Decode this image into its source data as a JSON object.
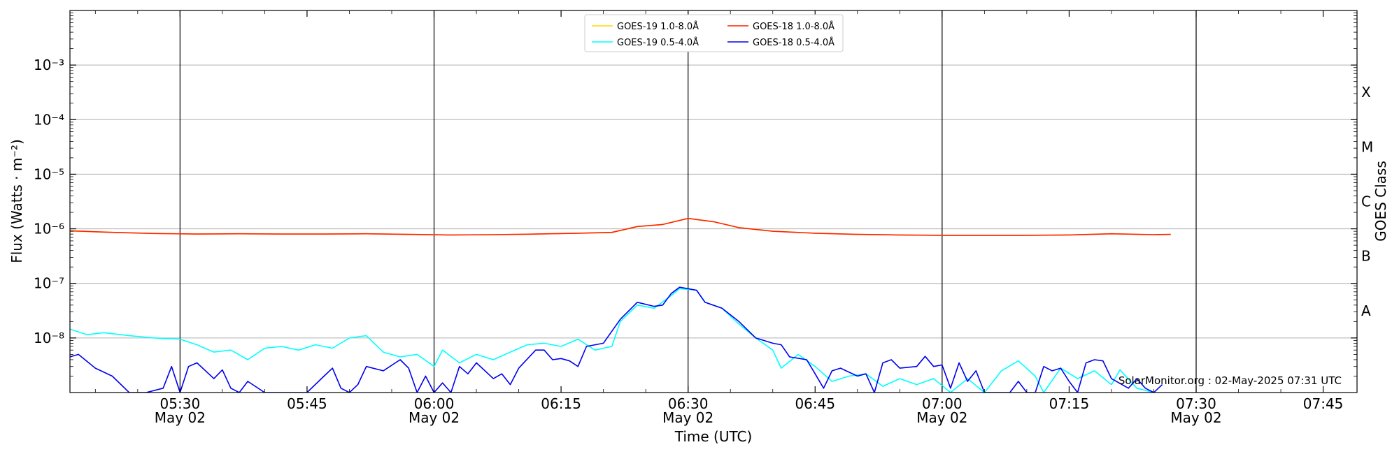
{
  "chart_data": {
    "type": "line",
    "xlabel": "Time (UTC)",
    "ylabel": "Flux (Watts · m⁻²)",
    "y2label": "GOES Class",
    "yscale": "log",
    "ylim": [
      1e-09,
      0.01
    ],
    "xlim": [
      "05:17",
      "07:49"
    ],
    "grid": "horizontal",
    "legend_position": "top-center",
    "credit": "SolarMonitor.org : 02-May-2025 07:31 UTC",
    "x_ticks": [
      {
        "time": "05:30",
        "label": "05:30",
        "sublabel": "May 02"
      },
      {
        "time": "05:45",
        "label": "05:45",
        "sublabel": ""
      },
      {
        "time": "06:00",
        "label": "06:00",
        "sublabel": "May 02"
      },
      {
        "time": "06:15",
        "label": "06:15",
        "sublabel": ""
      },
      {
        "time": "06:30",
        "label": "06:30",
        "sublabel": "May 02"
      },
      {
        "time": "06:45",
        "label": "06:45",
        "sublabel": ""
      },
      {
        "time": "07:00",
        "label": "07:00",
        "sublabel": "May 02"
      },
      {
        "time": "07:15",
        "label": "07:15",
        "sublabel": ""
      },
      {
        "time": "07:30",
        "label": "07:30",
        "sublabel": "May 02"
      },
      {
        "time": "07:45",
        "label": "07:45",
        "sublabel": ""
      }
    ],
    "vlines": [
      "05:30",
      "06:00",
      "06:30",
      "07:00",
      "07:30"
    ],
    "y_ticks": [
      {
        "value": 0.001,
        "label": "10⁻³"
      },
      {
        "value": 0.0001,
        "label": "10⁻⁴"
      },
      {
        "value": 1e-05,
        "label": "10⁻⁵"
      },
      {
        "value": 1e-06,
        "label": "10⁻⁶"
      },
      {
        "value": 1e-07,
        "label": "10⁻⁷"
      },
      {
        "value": 1e-08,
        "label": "10⁻⁸"
      }
    ],
    "goes_classes": [
      {
        "label": "A",
        "value": 3.16e-08
      },
      {
        "label": "B",
        "value": 3.16e-07
      },
      {
        "label": "C",
        "value": 3.16e-06
      },
      {
        "label": "M",
        "value": 3.16e-05
      },
      {
        "label": "X",
        "value": 0.000316
      }
    ],
    "legend": [
      {
        "label": "GOES-19 1.0-8.0Å",
        "color": "#ffd700"
      },
      {
        "label": "GOES-19 0.5-4.0Å",
        "color": "#00ffff"
      },
      {
        "label": "GOES-18 1.0-8.0Å",
        "color": "#ff2200"
      },
      {
        "label": "GOES-18 0.5-4.0Å",
        "color": "#0000ee"
      }
    ],
    "series": [
      {
        "name": "GOES-19 1.0-8.0Å",
        "color": "#ffd700",
        "points": [
          [
            "05:17",
            9.1e-07
          ],
          [
            "05:22",
            8.6e-07
          ],
          [
            "05:27",
            8.2e-07
          ],
          [
            "05:32",
            8e-07
          ],
          [
            "05:37",
            8.1e-07
          ],
          [
            "05:42",
            8e-07
          ],
          [
            "05:47",
            8e-07
          ],
          [
            "05:52",
            8.1e-07
          ],
          [
            "05:57",
            7.9e-07
          ],
          [
            "06:02",
            7.7e-07
          ],
          [
            "06:07",
            7.8e-07
          ],
          [
            "06:12",
            8e-07
          ],
          [
            "06:17",
            8.3e-07
          ],
          [
            "06:21",
            8.5e-07
          ],
          [
            "06:24",
            1.1e-06
          ],
          [
            "06:27",
            1.2e-06
          ],
          [
            "06:30",
            1.55e-06
          ],
          [
            "06:33",
            1.35e-06
          ],
          [
            "06:36",
            1.05e-06
          ],
          [
            "06:40",
            9e-07
          ],
          [
            "06:45",
            8.3e-07
          ],
          [
            "06:50",
            7.9e-07
          ],
          [
            "06:55",
            7.7e-07
          ],
          [
            "07:00",
            7.6e-07
          ],
          [
            "07:05",
            7.6e-07
          ],
          [
            "07:10",
            7.6e-07
          ],
          [
            "07:15",
            7.7e-07
          ],
          [
            "07:20",
            8.1e-07
          ],
          [
            "07:25",
            7.8e-07
          ],
          [
            "07:27",
            7.9e-07
          ]
        ]
      },
      {
        "name": "GOES-19 0.5-4.0Å",
        "color": "#00ffff",
        "points": [
          [
            "05:17",
            1.45e-08
          ],
          [
            "05:19",
            1.15e-08
          ],
          [
            "05:21",
            1.25e-08
          ],
          [
            "05:24",
            1.1e-08
          ],
          [
            "05:27",
            1e-08
          ],
          [
            "05:30",
            9.5e-09
          ],
          [
            "05:32",
            7.5e-09
          ],
          [
            "05:34",
            5.5e-09
          ],
          [
            "05:36",
            6e-09
          ],
          [
            "05:38",
            4e-09
          ],
          [
            "05:40",
            6.5e-09
          ],
          [
            "05:42",
            7e-09
          ],
          [
            "05:44",
            6e-09
          ],
          [
            "05:46",
            7.5e-09
          ],
          [
            "05:48",
            6.5e-09
          ],
          [
            "05:50",
            1e-08
          ],
          [
            "05:52",
            1.1e-08
          ],
          [
            "05:54",
            5.5e-09
          ],
          [
            "05:56",
            4.5e-09
          ],
          [
            "05:58",
            5e-09
          ],
          [
            "06:00",
            3e-09
          ],
          [
            "06:01",
            6e-09
          ],
          [
            "06:03",
            3.5e-09
          ],
          [
            "06:05",
            5e-09
          ],
          [
            "06:07",
            4e-09
          ],
          [
            "06:09",
            5.5e-09
          ],
          [
            "06:11",
            7.5e-09
          ],
          [
            "06:13",
            8e-09
          ],
          [
            "06:15",
            7e-09
          ],
          [
            "06:17",
            9.5e-09
          ],
          [
            "06:19",
            6e-09
          ],
          [
            "06:21",
            7e-09
          ],
          [
            "06:22",
            2e-08
          ],
          [
            "06:24",
            4e-08
          ],
          [
            "06:26",
            3.5e-08
          ],
          [
            "06:28",
            6e-08
          ],
          [
            "06:29",
            8e-08
          ],
          [
            "06:31",
            7.5e-08
          ],
          [
            "06:32",
            4.5e-08
          ],
          [
            "06:34",
            3.5e-08
          ],
          [
            "06:36",
            1.8e-08
          ],
          [
            "06:38",
            1e-08
          ],
          [
            "06:40",
            6e-09
          ],
          [
            "06:41",
            2.8e-09
          ],
          [
            "06:43",
            5e-09
          ],
          [
            "06:45",
            3e-09
          ],
          [
            "06:47",
            1.6e-09
          ],
          [
            "06:49",
            2e-09
          ],
          [
            "06:51",
            2.2e-09
          ],
          [
            "06:53",
            1.3e-09
          ],
          [
            "06:55",
            1.8e-09
          ],
          [
            "06:57",
            1.4e-09
          ],
          [
            "06:59",
            1.8e-09
          ],
          [
            "07:01",
            1e-09
          ],
          [
            "07:03",
            1.8e-09
          ],
          [
            "07:05",
            1e-09
          ],
          [
            "07:07",
            2.5e-09
          ],
          [
            "07:09",
            3.8e-09
          ],
          [
            "07:11",
            2e-09
          ],
          [
            "07:12",
            1e-09
          ],
          [
            "07:14",
            2.8e-09
          ],
          [
            "07:16",
            1.8e-09
          ],
          [
            "07:18",
            2.5e-09
          ],
          [
            "07:20",
            1.4e-09
          ],
          [
            "07:21",
            2.6e-09
          ],
          [
            "07:23",
            1.2e-09
          ],
          [
            "07:25",
            1e-09
          ]
        ]
      },
      {
        "name": "GOES-18 1.0-8.0Å",
        "color": "#ff2200",
        "points": [
          [
            "05:17",
            9.2e-07
          ],
          [
            "05:22",
            8.6e-07
          ],
          [
            "05:27",
            8.2e-07
          ],
          [
            "05:32",
            8e-07
          ],
          [
            "05:37",
            8.1e-07
          ],
          [
            "05:42",
            8e-07
          ],
          [
            "05:47",
            8e-07
          ],
          [
            "05:52",
            8.1e-07
          ],
          [
            "05:57",
            7.9e-07
          ],
          [
            "06:02",
            7.7e-07
          ],
          [
            "06:07",
            7.8e-07
          ],
          [
            "06:12",
            8e-07
          ],
          [
            "06:17",
            8.3e-07
          ],
          [
            "06:21",
            8.6e-07
          ],
          [
            "06:24",
            1.1e-06
          ],
          [
            "06:27",
            1.2e-06
          ],
          [
            "06:30",
            1.55e-06
          ],
          [
            "06:33",
            1.35e-06
          ],
          [
            "06:36",
            1.05e-06
          ],
          [
            "06:40",
            9e-07
          ],
          [
            "06:45",
            8.3e-07
          ],
          [
            "06:50",
            7.9e-07
          ],
          [
            "06:55",
            7.7e-07
          ],
          [
            "07:00",
            7.6e-07
          ],
          [
            "07:05",
            7.6e-07
          ],
          [
            "07:10",
            7.6e-07
          ],
          [
            "07:15",
            7.7e-07
          ],
          [
            "07:20",
            8.1e-07
          ],
          [
            "07:25",
            7.8e-07
          ],
          [
            "07:27",
            7.9e-07
          ]
        ]
      },
      {
        "name": "GOES-18 0.5-4.0Å",
        "color": "#0000ee",
        "points": [
          [
            "05:17",
            4.5e-09
          ],
          [
            "05:18",
            5e-09
          ],
          [
            "05:20",
            2.8e-09
          ],
          [
            "05:22",
            2e-09
          ],
          [
            "05:24",
            1e-09
          ],
          [
            "05:26",
            1e-09
          ],
          [
            "05:28",
            1.2e-09
          ],
          [
            "05:29",
            3e-09
          ],
          [
            "05:30",
            1e-09
          ],
          [
            "05:31",
            3e-09
          ],
          [
            "05:32",
            3.5e-09
          ],
          [
            "05:34",
            1.8e-09
          ],
          [
            "05:35",
            2.6e-09
          ],
          [
            "05:36",
            1.2e-09
          ],
          [
            "05:37",
            1e-09
          ],
          [
            "05:38",
            1.6e-09
          ],
          [
            "05:40",
            1e-09
          ],
          [
            "05:45",
            1e-09
          ],
          [
            "05:47",
            2e-09
          ],
          [
            "05:48",
            2.8e-09
          ],
          [
            "05:49",
            1.2e-09
          ],
          [
            "05:50",
            1e-09
          ],
          [
            "05:51",
            1.4e-09
          ],
          [
            "05:52",
            3e-09
          ],
          [
            "05:54",
            2.5e-09
          ],
          [
            "05:56",
            4e-09
          ],
          [
            "05:57",
            2.8e-09
          ],
          [
            "05:58",
            1e-09
          ],
          [
            "05:59",
            2e-09
          ],
          [
            "06:00",
            1e-09
          ],
          [
            "06:01",
            1.5e-09
          ],
          [
            "06:02",
            1e-09
          ],
          [
            "06:03",
            3e-09
          ],
          [
            "06:04",
            2.2e-09
          ],
          [
            "06:05",
            3.5e-09
          ],
          [
            "06:07",
            1.8e-09
          ],
          [
            "06:08",
            2.2e-09
          ],
          [
            "06:09",
            1.4e-09
          ],
          [
            "06:10",
            2.8e-09
          ],
          [
            "06:12",
            6e-09
          ],
          [
            "06:13",
            6e-09
          ],
          [
            "06:14",
            4e-09
          ],
          [
            "06:15",
            4.2e-09
          ],
          [
            "06:16",
            3.8e-09
          ],
          [
            "06:17",
            3e-09
          ],
          [
            "06:18",
            7e-09
          ],
          [
            "06:20",
            8e-09
          ],
          [
            "06:22",
            2.2e-08
          ],
          [
            "06:24",
            4.5e-08
          ],
          [
            "06:26",
            3.8e-08
          ],
          [
            "06:27",
            4e-08
          ],
          [
            "06:28",
            6.5e-08
          ],
          [
            "06:29",
            8.5e-08
          ],
          [
            "06:31",
            7.5e-08
          ],
          [
            "06:32",
            4.5e-08
          ],
          [
            "06:34",
            3.5e-08
          ],
          [
            "06:36",
            2e-08
          ],
          [
            "06:38",
            1e-08
          ],
          [
            "06:40",
            8e-09
          ],
          [
            "06:41",
            7.5e-09
          ],
          [
            "06:42",
            4.5e-09
          ],
          [
            "06:44",
            4e-09
          ],
          [
            "06:45",
            2.2e-09
          ],
          [
            "06:46",
            1.2e-09
          ],
          [
            "06:47",
            2.5e-09
          ],
          [
            "06:48",
            2.8e-09
          ],
          [
            "06:50",
            2e-09
          ],
          [
            "06:51",
            2.2e-09
          ],
          [
            "06:52",
            1e-09
          ],
          [
            "06:53",
            3.5e-09
          ],
          [
            "06:54",
            4e-09
          ],
          [
            "06:55",
            2.8e-09
          ],
          [
            "06:57",
            3e-09
          ],
          [
            "06:58",
            4.6e-09
          ],
          [
            "06:59",
            3e-09
          ],
          [
            "07:00",
            3.2e-09
          ],
          [
            "07:01",
            1.2e-09
          ],
          [
            "07:02",
            3.5e-09
          ],
          [
            "07:03",
            1.6e-09
          ],
          [
            "07:04",
            2.5e-09
          ],
          [
            "07:05",
            1e-09
          ],
          [
            "07:08",
            1e-09
          ],
          [
            "07:09",
            1.6e-09
          ],
          [
            "07:10",
            1e-09
          ],
          [
            "07:11",
            1e-09
          ],
          [
            "07:12",
            3e-09
          ],
          [
            "07:13",
            2.5e-09
          ],
          [
            "07:14",
            2.8e-09
          ],
          [
            "07:15",
            1.6e-09
          ],
          [
            "07:16",
            1e-09
          ],
          [
            "07:17",
            3.5e-09
          ],
          [
            "07:18",
            4e-09
          ],
          [
            "07:19",
            3.8e-09
          ],
          [
            "07:20",
            1.8e-09
          ],
          [
            "07:22",
            1.2e-09
          ],
          [
            "07:23",
            1.8e-09
          ],
          [
            "07:24",
            1.2e-09
          ],
          [
            "07:25",
            1e-09
          ],
          [
            "07:26",
            1.4e-09
          ]
        ]
      }
    ]
  }
}
